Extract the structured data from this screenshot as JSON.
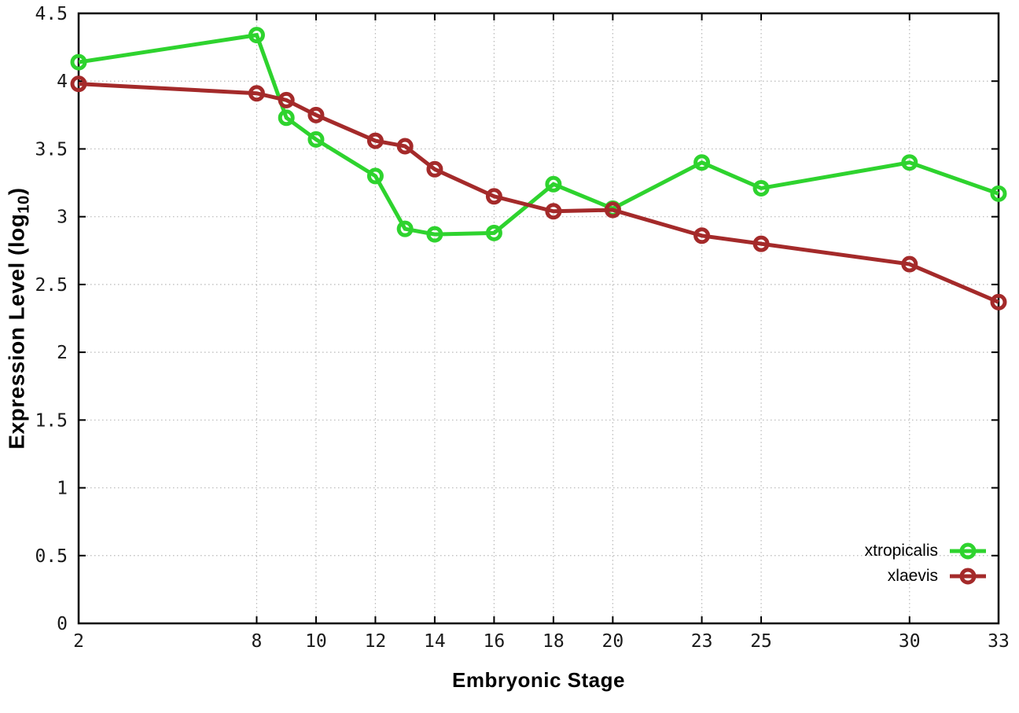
{
  "chart_data": {
    "type": "line",
    "xlabel": "Embryonic Stage",
    "ylabel": "Expression Level (log10)",
    "ylabel_parts": {
      "main": "Expression Level (log",
      "sub": "10",
      "close": ")"
    },
    "xlim": [
      2,
      33
    ],
    "ylim": [
      0,
      4.5
    ],
    "x_ticks": [
      2,
      8,
      10,
      12,
      14,
      16,
      18,
      20,
      23,
      25,
      30,
      33
    ],
    "y_ticks": [
      0,
      0.5,
      1,
      1.5,
      2,
      2.5,
      3,
      3.5,
      4,
      4.5
    ],
    "grid": true,
    "legend_position": "inside-bottom-right",
    "x": [
      2,
      8,
      9,
      10,
      12,
      13,
      14,
      16,
      18,
      20,
      23,
      25,
      30,
      33
    ],
    "series": [
      {
        "name": "xtropicalis",
        "color": "#2ed32e",
        "values": [
          4.14,
          4.34,
          3.73,
          3.57,
          3.3,
          2.91,
          2.87,
          2.88,
          3.24,
          3.06,
          3.4,
          3.21,
          3.4,
          3.17
        ]
      },
      {
        "name": "xlaevis",
        "color": "#a42a2a",
        "values": [
          3.98,
          3.91,
          3.86,
          3.75,
          3.56,
          3.52,
          3.35,
          3.15,
          3.04,
          3.05,
          2.86,
          2.8,
          2.65,
          2.37
        ]
      }
    ],
    "axis_color": "#000000",
    "grid_color": "#b8b8b8",
    "tick_label_color": "#1a1a1a"
  }
}
